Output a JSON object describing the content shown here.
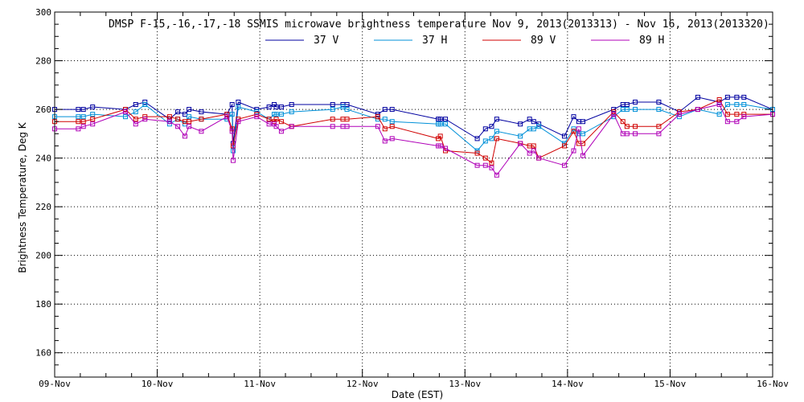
{
  "chart_data": {
    "type": "line",
    "title": "DMSP F-15,-16,-17,-18 SSMIS microwave brightness temperature Nov  9, 2013(2013313) - Nov 16, 2013(2013320)",
    "xlabel": "Date (EST)",
    "ylabel": "Brightness Temperature, Deg K",
    "xlim": [
      0,
      7
    ],
    "ylim": [
      150,
      300
    ],
    "x_unit": "days since 09-Nov 00:00 EST",
    "yticks": [
      160,
      180,
      200,
      220,
      240,
      260,
      280,
      300
    ],
    "xtick_labels": [
      "09-Nov",
      "10-Nov",
      "11-Nov",
      "12-Nov",
      "13-Nov",
      "14-Nov",
      "15-Nov",
      "16-Nov"
    ],
    "grid": true,
    "series": [
      {
        "name": "37 V",
        "color": "#0000a0",
        "x": [
          0.0,
          0.23,
          0.28,
          0.37,
          0.69,
          0.79,
          0.88,
          1.12,
          1.2,
          1.27,
          1.31,
          1.43,
          1.68,
          1.73,
          1.74,
          1.79,
          1.97,
          2.09,
          2.14,
          2.16,
          2.21,
          2.31,
          2.71,
          2.81,
          2.85,
          3.15,
          3.22,
          3.29,
          3.74,
          3.76,
          3.81,
          4.12,
          4.2,
          4.26,
          4.31,
          4.54,
          4.63,
          4.67,
          4.72,
          4.97,
          5.06,
          5.11,
          5.15,
          5.45,
          5.54,
          5.58,
          5.66,
          5.89,
          6.09,
          6.27,
          6.48,
          6.56,
          6.65,
          6.72,
          7.0
        ],
        "y": [
          260,
          260,
          260,
          261,
          260,
          262,
          263,
          256,
          259,
          258,
          260,
          259,
          258,
          262,
          246,
          263,
          260,
          261,
          262,
          261,
          261,
          262,
          262,
          262,
          262,
          258,
          260,
          260,
          256,
          256,
          256,
          248,
          252,
          253,
          256,
          254,
          256,
          255,
          254,
          249,
          257,
          255,
          255,
          260,
          262,
          262,
          263,
          263,
          259,
          265,
          263,
          265,
          265,
          265,
          260
        ]
      },
      {
        "name": "37 H",
        "color": "#0090d8",
        "x": [
          0.0,
          0.23,
          0.28,
          0.37,
          0.69,
          0.79,
          0.88,
          1.12,
          1.2,
          1.27,
          1.31,
          1.43,
          1.68,
          1.73,
          1.74,
          1.79,
          1.97,
          2.09,
          2.14,
          2.16,
          2.21,
          2.31,
          2.71,
          2.81,
          2.85,
          3.15,
          3.22,
          3.29,
          3.74,
          3.76,
          3.81,
          4.12,
          4.2,
          4.26,
          4.31,
          4.54,
          4.63,
          4.67,
          4.72,
          4.97,
          5.06,
          5.11,
          5.15,
          5.45,
          5.54,
          5.58,
          5.66,
          5.89,
          6.09,
          6.27,
          6.48,
          6.56,
          6.65,
          6.72,
          7.0
        ],
        "y": [
          257,
          257,
          257,
          258,
          257,
          259,
          262,
          254,
          256,
          254,
          257,
          256,
          256,
          258,
          243,
          261,
          259,
          256,
          258,
          258,
          258,
          259,
          260,
          261,
          260,
          256,
          256,
          255,
          254,
          254,
          254,
          243,
          247,
          248,
          251,
          249,
          252,
          252,
          253,
          246,
          252,
          250,
          250,
          257,
          260,
          260,
          260,
          260,
          257,
          260,
          258,
          262,
          262,
          262,
          260
        ]
      },
      {
        "name": "89 V",
        "color": "#d00000",
        "x": [
          0.0,
          0.23,
          0.28,
          0.37,
          0.69,
          0.79,
          0.88,
          1.12,
          1.2,
          1.27,
          1.31,
          1.43,
          1.68,
          1.73,
          1.74,
          1.79,
          1.97,
          2.09,
          2.14,
          2.16,
          2.21,
          2.31,
          2.71,
          2.81,
          2.85,
          3.15,
          3.22,
          3.29,
          3.74,
          3.76,
          3.81,
          4.12,
          4.2,
          4.26,
          4.31,
          4.54,
          4.63,
          4.67,
          4.72,
          4.97,
          5.06,
          5.11,
          5.15,
          5.45,
          5.54,
          5.58,
          5.66,
          5.89,
          6.09,
          6.27,
          6.48,
          6.56,
          6.65,
          6.72,
          7.0
        ],
        "y": [
          255,
          255,
          255,
          256,
          260,
          256,
          257,
          257,
          256,
          255,
          255,
          256,
          258,
          252,
          245,
          256,
          258,
          256,
          255,
          256,
          255,
          253,
          256,
          256,
          256,
          257,
          252,
          253,
          248,
          249,
          243,
          242,
          240,
          238,
          248,
          246,
          245,
          245,
          240,
          245,
          251,
          246,
          246,
          259,
          255,
          253,
          253,
          253,
          259,
          260,
          264,
          258,
          258,
          258,
          258
        ]
      },
      {
        "name": "89 H",
        "color": "#b000b8",
        "x": [
          0.0,
          0.23,
          0.28,
          0.37,
          0.69,
          0.79,
          0.88,
          1.12,
          1.2,
          1.27,
          1.31,
          1.43,
          1.68,
          1.73,
          1.74,
          1.79,
          1.97,
          2.09,
          2.14,
          2.16,
          2.21,
          2.31,
          2.71,
          2.81,
          2.85,
          3.15,
          3.22,
          3.29,
          3.74,
          3.76,
          3.81,
          4.12,
          4.2,
          4.26,
          4.31,
          4.54,
          4.63,
          4.67,
          4.72,
          4.97,
          5.06,
          5.11,
          5.15,
          5.45,
          5.54,
          5.58,
          5.66,
          5.89,
          6.09,
          6.27,
          6.48,
          6.56,
          6.65,
          6.72,
          7.0
        ],
        "y": [
          252,
          252,
          253,
          254,
          259,
          254,
          256,
          255,
          253,
          249,
          253,
          251,
          257,
          251,
          239,
          255,
          257,
          254,
          254,
          253,
          251,
          253,
          253,
          253,
          253,
          253,
          247,
          248,
          245,
          245,
          244,
          237,
          237,
          236,
          233,
          246,
          242,
          243,
          240,
          237,
          243,
          252,
          241,
          258,
          250,
          250,
          250,
          250,
          258,
          260,
          262,
          255,
          255,
          257,
          258
        ]
      }
    ],
    "legend": {
      "placement": "top",
      "entries": [
        "37 V",
        "37 H",
        "89 V",
        "89 H"
      ]
    }
  }
}
